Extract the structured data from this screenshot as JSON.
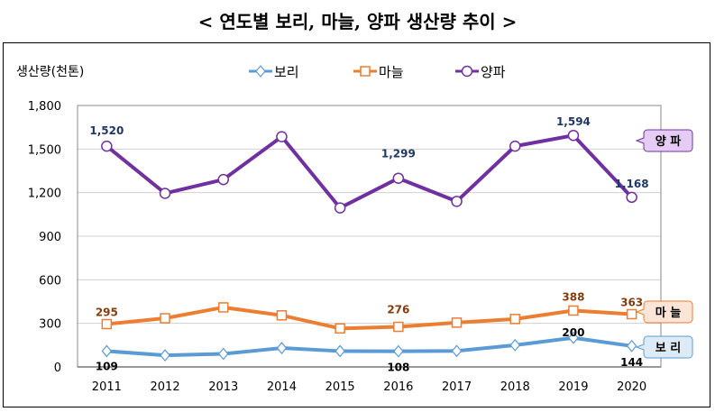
{
  "title": "< 연도별 보리, 마늘, 양파 생산량  추이 >",
  "chart_data": {
    "type": "line",
    "title": "< 연도별 보리, 마늘, 양파 생산량  추이 >",
    "ylabel": "생산량(천톤)",
    "xlabel": "",
    "categories": [
      "2011",
      "2012",
      "2013",
      "2014",
      "2015",
      "2016",
      "2017",
      "2018",
      "2019",
      "2020"
    ],
    "ylim": [
      0,
      1800
    ],
    "yticks": [
      0,
      300,
      600,
      900,
      1200,
      1500,
      1800
    ],
    "ytick_labels": [
      "0",
      "300",
      "600",
      "900",
      "1,200",
      "1,500",
      "1,800"
    ],
    "grid": true,
    "legend": "top",
    "series": [
      {
        "name": "보리",
        "color": "#5B9BD5",
        "marker": "diamond",
        "callout": "보 리",
        "callout_fill": "#DDEBF7",
        "values": [
          109,
          80,
          90,
          130,
          109,
          108,
          110,
          150,
          200,
          144
        ],
        "data_labels": {
          "0": "109",
          "5": "108",
          "8": "200",
          "9": "144"
        },
        "label_color": "#000000"
      },
      {
        "name": "마늘",
        "color": "#ED7D31",
        "marker": "square",
        "callout": "마 늘",
        "callout_fill": "#FCE4D6",
        "values": [
          295,
          335,
          410,
          355,
          265,
          276,
          305,
          330,
          388,
          363
        ],
        "data_labels": {
          "0": "295",
          "5": "276",
          "8": "388",
          "9": "363"
        },
        "label_color": "#843C0C"
      },
      {
        "name": "양파",
        "color": "#7030A0",
        "marker": "circle",
        "callout": "양 파",
        "callout_fill": "#E4CCF5",
        "values": [
          1520,
          1195,
          1290,
          1585,
          1095,
          1299,
          1140,
          1520,
          1594,
          1168
        ],
        "data_labels": {
          "0": "1,520",
          "5": "1,299",
          "8": "1,594",
          "9": "1,168"
        },
        "label_color": "#1F3864"
      }
    ]
  }
}
